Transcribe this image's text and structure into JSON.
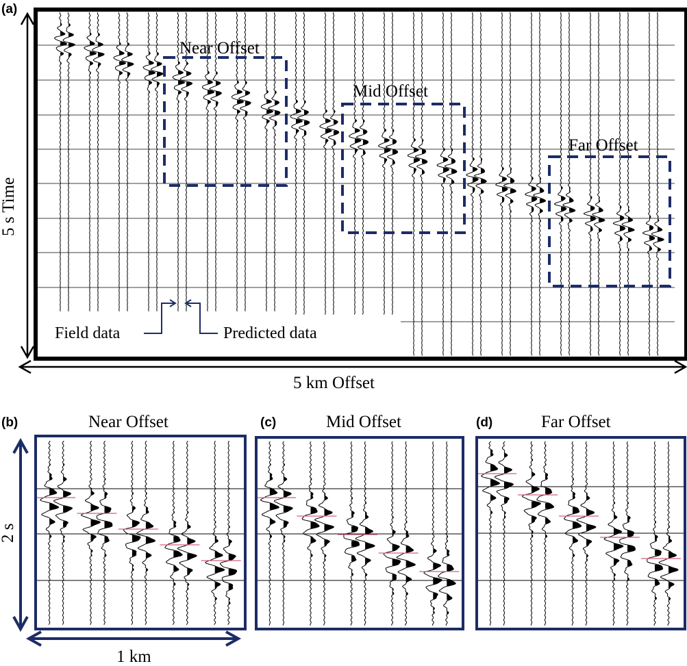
{
  "panels": {
    "a": {
      "label": "(a)",
      "y_axis_label": "5 s Time",
      "x_axis_label": "5 km Offset",
      "boxes": [
        {
          "label": "Near Offset"
        },
        {
          "label": "Mid Offset"
        },
        {
          "label": "Far Offset"
        }
      ],
      "annotations": {
        "field": "Field data",
        "predicted": "Predicted data"
      }
    },
    "b": {
      "label": "(b)",
      "title": "Near Offset",
      "y_axis_label": "2 s",
      "x_axis_label": "1 km"
    },
    "c": {
      "label": "(c)",
      "title": "Mid Offset"
    },
    "d": {
      "label": "(d)",
      "title": "Far Offset"
    }
  },
  "colors": {
    "frame_a": "#000000",
    "frame_zoom": "#1c2c66",
    "box_dash": "#1c2c66",
    "pick_marker": "#d0607a",
    "trace": "#000000"
  }
}
